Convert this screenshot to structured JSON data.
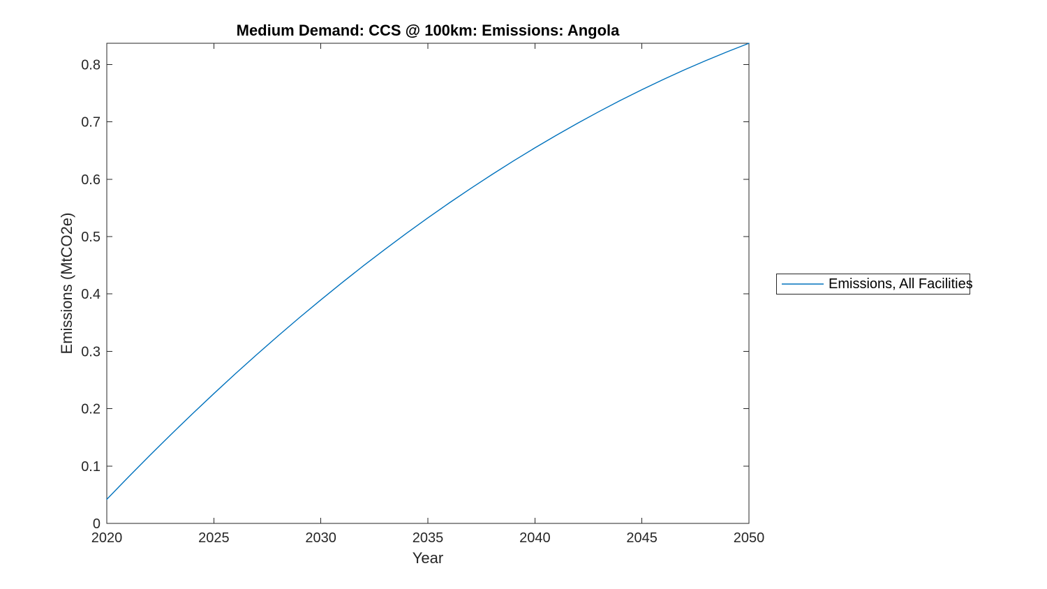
{
  "chart_data": {
    "type": "line",
    "title": "Medium Demand: CCS @ 100km: Emissions: Angola",
    "xlabel": "Year",
    "ylabel": "Emissions (MtCO2e)",
    "xlim": [
      2020,
      2050
    ],
    "ylim": [
      0,
      0.837
    ],
    "xticks": [
      2020,
      2025,
      2030,
      2035,
      2040,
      2045,
      2050
    ],
    "xtick_labels": [
      "2020",
      "2025",
      "2030",
      "2035",
      "2040",
      "2045",
      "2050"
    ],
    "yticks": [
      0,
      0.1,
      0.2,
      0.3,
      0.4,
      0.5,
      0.6,
      0.7,
      0.8
    ],
    "ytick_labels": [
      "0",
      "0.1",
      "0.2",
      "0.3",
      "0.4",
      "0.5",
      "0.6",
      "0.7",
      "0.8"
    ],
    "grid": false,
    "box": true,
    "tick_direction": "in",
    "legend": {
      "location": "outside-right",
      "box": true,
      "entries": [
        "Emissions, All Facilities"
      ]
    },
    "colors": {
      "axis": "#262626",
      "line": "#0072BD",
      "title": "#000000",
      "background": "#ffffff"
    },
    "series": [
      {
        "name": "Emissions, All Facilities",
        "color": "#0072BD",
        "x": [
          2020,
          2021,
          2022,
          2023,
          2024,
          2025,
          2026,
          2027,
          2028,
          2029,
          2030,
          2031,
          2032,
          2033,
          2034,
          2035,
          2036,
          2037,
          2038,
          2039,
          2040,
          2041,
          2042,
          2043,
          2044,
          2045,
          2046,
          2047,
          2048,
          2049,
          2050
        ],
        "y": [
          0.042,
          0.0805,
          0.1182,
          0.155,
          0.191,
          0.2262,
          0.2606,
          0.2941,
          0.3268,
          0.3587,
          0.3897,
          0.42,
          0.4494,
          0.4779,
          0.5057,
          0.5326,
          0.5587,
          0.5839,
          0.6083,
          0.6319,
          0.6547,
          0.6766,
          0.6977,
          0.718,
          0.7375,
          0.7561,
          0.7739,
          0.7909,
          0.807,
          0.8224,
          0.837
        ]
      }
    ]
  }
}
